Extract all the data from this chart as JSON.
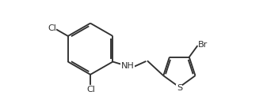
{
  "background": "#ffffff",
  "bond_color": "#303030",
  "bond_lw": 1.35,
  "font_size": 8.0,
  "fig_w": 3.37,
  "fig_h": 1.4,
  "dpi": 100,
  "xlim": [
    -0.3,
    10.2
  ],
  "ylim": [
    1.0,
    5.5
  ]
}
